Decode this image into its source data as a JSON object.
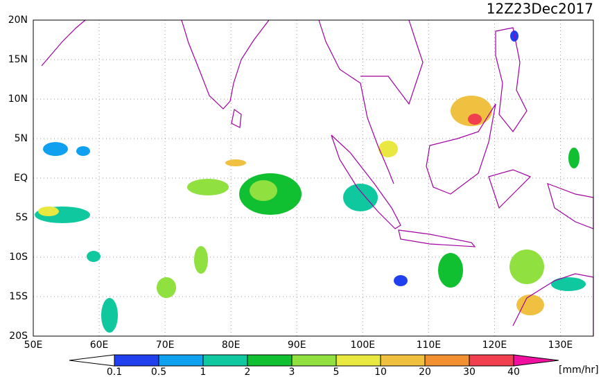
{
  "title": "12Z23Dec2017",
  "map": {
    "lon_range": [
      50,
      135
    ],
    "lat_range": [
      -20,
      20
    ],
    "lon_ticks": [
      {
        "value": 50,
        "label": "50E"
      },
      {
        "value": 60,
        "label": "60E"
      },
      {
        "value": 70,
        "label": "70E"
      },
      {
        "value": 80,
        "label": "80E"
      },
      {
        "value": 90,
        "label": "90E"
      },
      {
        "value": 100,
        "label": "100E"
      },
      {
        "value": 110,
        "label": "110E"
      },
      {
        "value": 120,
        "label": "120E"
      },
      {
        "value": 130,
        "label": "130E"
      }
    ],
    "lat_ticks": [
      {
        "value": 20,
        "label": "20N"
      },
      {
        "value": 15,
        "label": "15N"
      },
      {
        "value": 10,
        "label": "10N"
      },
      {
        "value": 5,
        "label": "5N"
      },
      {
        "value": 0,
        "label": "EQ"
      },
      {
        "value": -5,
        "label": "5S"
      },
      {
        "value": -10,
        "label": "10S"
      },
      {
        "value": -15,
        "label": "15S"
      },
      {
        "value": -20,
        "label": "20S"
      }
    ]
  },
  "colorbar": {
    "levels": [
      0.1,
      0.5,
      1,
      2,
      3,
      5,
      10,
      20,
      30,
      40
    ],
    "colors": [
      "#ffffff",
      "#2040f0",
      "#10a0f0",
      "#10c8a0",
      "#10c030",
      "#90e040",
      "#e8e840",
      "#f0c040",
      "#f09030",
      "#f04050",
      "#f010a0"
    ],
    "unit": "[mm/hr]"
  }
}
